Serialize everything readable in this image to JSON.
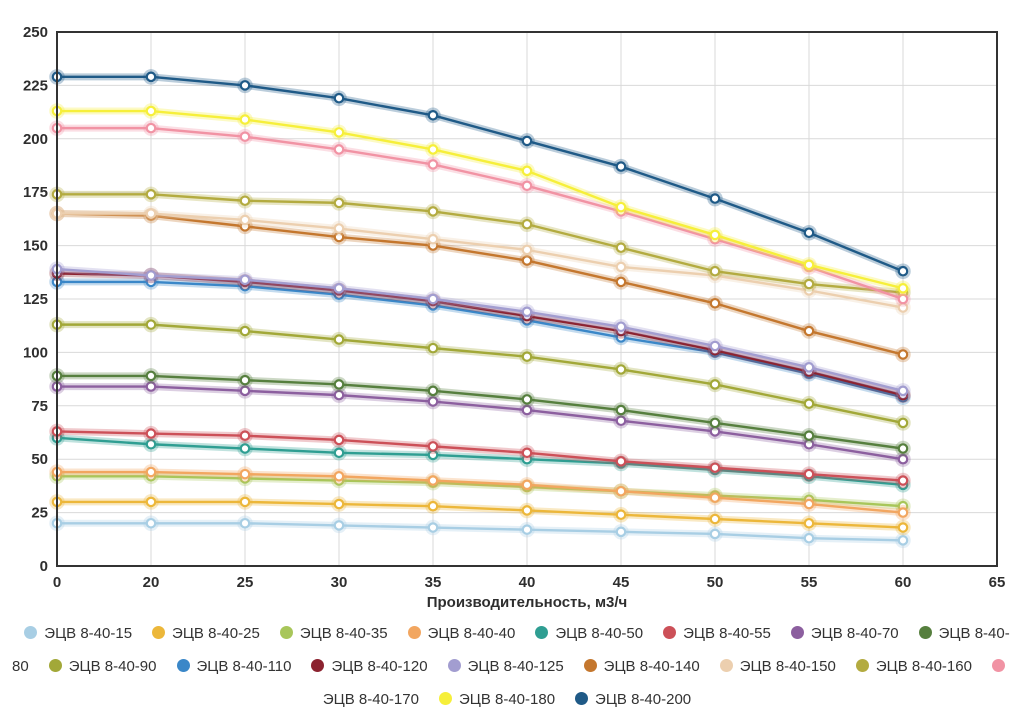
{
  "chart_data": {
    "type": "line",
    "title": "",
    "xlabel": "Производительность, м3/ч",
    "ylabel": "",
    "ylim": [
      0,
      250
    ],
    "yticks": [
      0,
      25,
      50,
      75,
      100,
      125,
      150,
      175,
      200,
      225,
      250
    ],
    "xticks": [
      "0",
      "20",
      "25",
      "30",
      "35",
      "40",
      "45",
      "50",
      "55",
      "60",
      "65"
    ],
    "categories": [
      "0",
      "20",
      "25",
      "30",
      "35",
      "40",
      "45",
      "50",
      "55",
      "60"
    ],
    "grid": true,
    "legend_position": "bottom",
    "marker_style": "open-circle",
    "grid_color": "#d9d9d9",
    "border_color": "#333333",
    "tick_color": "#2e2e2e",
    "series": [
      {
        "name": "ЭЦВ 8-40-15",
        "color": "#a8cee4",
        "values": [
          20,
          20,
          20,
          19,
          18,
          17,
          16,
          15,
          13,
          12
        ]
      },
      {
        "name": "ЭЦВ 8-40-25",
        "color": "#ecb73a",
        "values": [
          30,
          30,
          30,
          29,
          28,
          26,
          24,
          22,
          20,
          18
        ]
      },
      {
        "name": "ЭЦВ 8-40-35",
        "color": "#a8c65a",
        "values": [
          42,
          42,
          41,
          40,
          39,
          37,
          35,
          33,
          31,
          28
        ]
      },
      {
        "name": "ЭЦВ 8-40-40",
        "color": "#f2a660",
        "values": [
          44,
          44,
          43,
          42,
          40,
          38,
          35,
          32,
          29,
          25
        ]
      },
      {
        "name": "ЭЦВ 8-40-50",
        "color": "#2f9e92",
        "values": [
          60,
          57,
          55,
          53,
          52,
          50,
          48,
          45,
          42,
          38
        ]
      },
      {
        "name": "ЭЦВ 8-40-55",
        "color": "#cc5058",
        "values": [
          63,
          62,
          61,
          59,
          56,
          53,
          49,
          46,
          43,
          40
        ]
      },
      {
        "name": "ЭЦВ 8-40-70",
        "color": "#8c5f9f",
        "values": [
          84,
          84,
          82,
          80,
          77,
          73,
          68,
          63,
          57,
          50
        ]
      },
      {
        "name": "ЭЦВ 8-40-80",
        "color": "#567f3e",
        "values": [
          89,
          89,
          87,
          85,
          82,
          78,
          73,
          67,
          61,
          55
        ]
      },
      {
        "name": "ЭЦВ 8-40-90",
        "color": "#a2a838",
        "values": [
          113,
          113,
          110,
          106,
          102,
          98,
          92,
          85,
          76,
          67
        ]
      },
      {
        "name": "ЭЦВ 8-40-110",
        "color": "#3a87c8",
        "values": [
          133,
          133,
          131,
          127,
          122,
          115,
          107,
          100,
          90,
          79
        ]
      },
      {
        "name": "ЭЦВ 8-40-120",
        "color": "#8c2330",
        "values": [
          137,
          136,
          133,
          129,
          124,
          117,
          110,
          101,
          91,
          80
        ]
      },
      {
        "name": "ЭЦВ 8-40-125",
        "color": "#a29dd0",
        "values": [
          139,
          136,
          134,
          130,
          125,
          119,
          112,
          103,
          93,
          82
        ]
      },
      {
        "name": "ЭЦВ 8-40-140",
        "color": "#c4772e",
        "values": [
          165,
          164,
          159,
          154,
          150,
          143,
          133,
          123,
          110,
          99
        ]
      },
      {
        "name": "ЭЦВ 8-40-150",
        "color": "#eccfaf",
        "values": [
          165,
          165,
          162,
          158,
          153,
          148,
          140,
          136,
          129,
          121
        ]
      },
      {
        "name": "ЭЦВ 8-40-160",
        "color": "#b3ab40",
        "values": [
          174,
          174,
          171,
          170,
          166,
          160,
          149,
          138,
          132,
          128
        ]
      },
      {
        "name": "ЭЦВ 8-40-170",
        "color": "#f193a4",
        "values": [
          205,
          205,
          201,
          195,
          188,
          178,
          166,
          153,
          140,
          125
        ]
      },
      {
        "name": "ЭЦВ 8-40-180",
        "color": "#f6ef3a",
        "values": [
          213,
          213,
          209,
          203,
          195,
          185,
          168,
          155,
          141,
          130
        ]
      },
      {
        "name": "ЭЦВ 8-40-200",
        "color": "#1f5a87",
        "values": [
          229,
          229,
          225,
          219,
          211,
          199,
          187,
          172,
          156,
          138
        ]
      }
    ]
  }
}
